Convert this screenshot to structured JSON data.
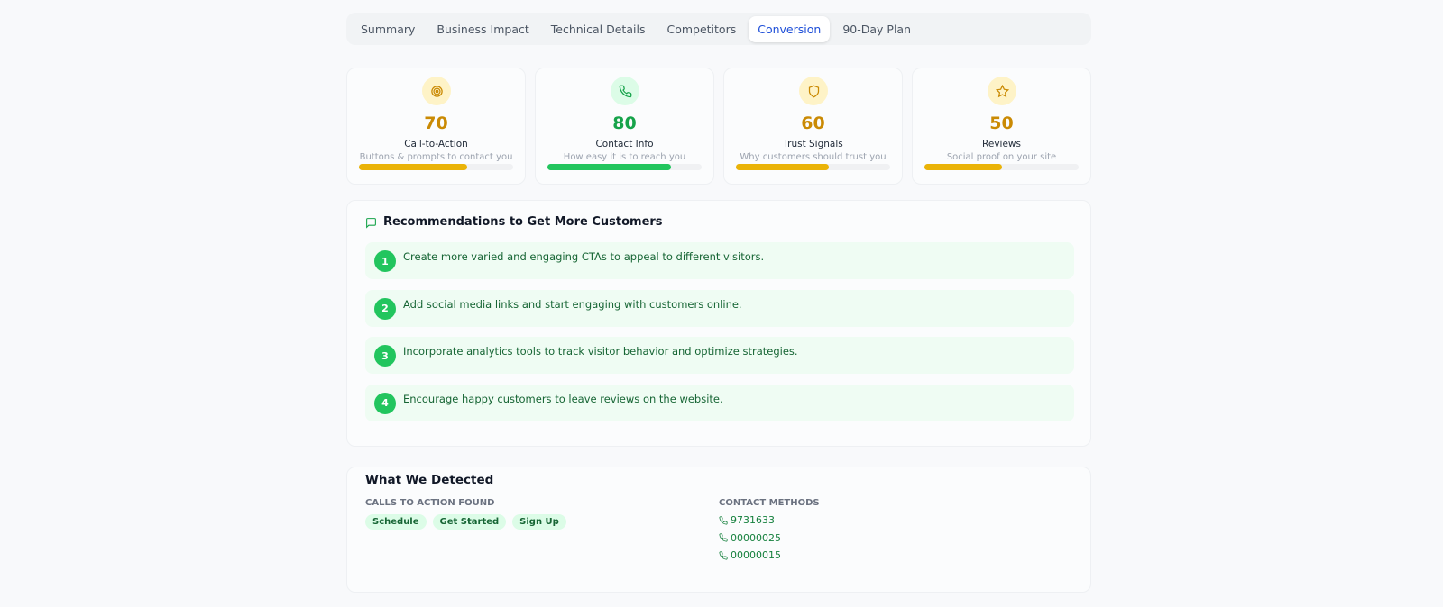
{
  "tabs": [
    "Summary",
    "Business Impact",
    "Technical Details",
    "Competitors",
    "Conversion",
    "90-Day Plan"
  ],
  "metrics": [
    {
      "score": 70,
      "label": "Call-to-Action",
      "description": "Buttons & prompts to contact you",
      "color": "#ca8a04",
      "bar_color": "#eab308"
    },
    {
      "score": 80,
      "label": "Contact Info",
      "description": "How easy it is to reach you",
      "color": "#16a34a",
      "bar_color": "#22c55e"
    },
    {
      "score": 60,
      "label": "Trust Signals",
      "description": "Why customers should trust you",
      "color": "#ca8a04",
      "bar_color": "#eab308"
    },
    {
      "score": 50,
      "label": "Reviews",
      "description": "Social proof on your site",
      "color": "#ca8a04",
      "bar_color": "#eab308"
    }
  ],
  "recommendations": {
    "title": "Recommendations to Get More Customers",
    "items": [
      {
        "number": 1,
        "text": "Create more varied and engaging CTAs to appeal to different visitors."
      },
      {
        "number": 2,
        "text": "Add social media links and start engaging with customers online."
      },
      {
        "number": 3,
        "text": "Incorporate analytics tools to track visitor behavior and optimize strategies."
      },
      {
        "number": 4,
        "text": "Encourage happy customers to leave reviews on the website."
      }
    ]
  },
  "detected": {
    "title": "What We Detected",
    "ctas_label": "CALLS TO ACTION FOUND",
    "ctas": [
      "Schedule",
      "Get Started",
      "Sign Up"
    ],
    "contacts_label": "CONTACT METHODS",
    "contacts": [
      "9731633",
      "00000025",
      "00000015"
    ]
  }
}
